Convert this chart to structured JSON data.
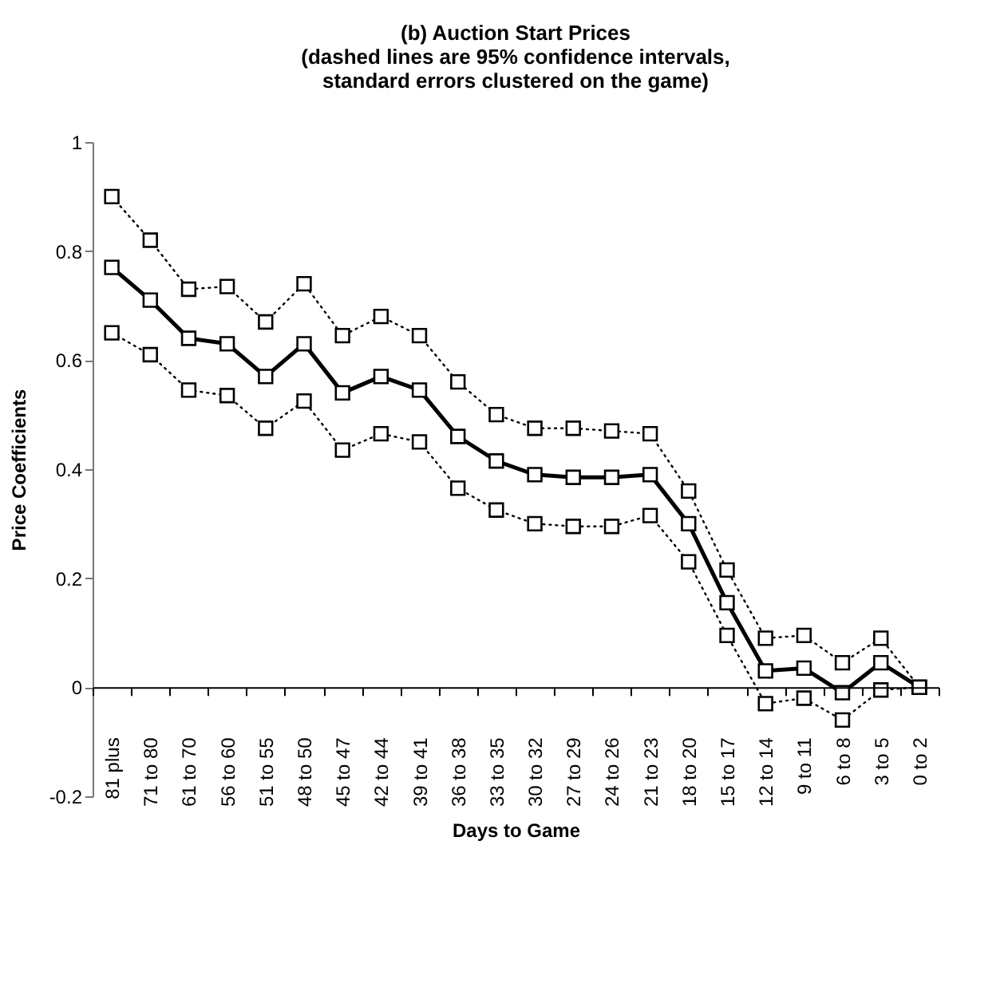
{
  "chart_data": {
    "type": "line",
    "title": [
      "(b) Auction Start Prices",
      "(dashed lines are 95% confidence intervals,",
      "standard errors clustered on the game)"
    ],
    "xlabel": "Days to Game",
    "ylabel": "Price Coefficients",
    "categories": [
      "81 plus",
      "71 to 80",
      "61 to 70",
      "56 to 60",
      "51 to 55",
      "48 to 50",
      "45 to 47",
      "42 to 44",
      "39 to 41",
      "36 to 38",
      "33 to 35",
      "30 to 32",
      "27 to 29",
      "24 to 26",
      "21 to 23",
      "18 to 20",
      "15 to 17",
      "12 to 14",
      "9 to 11",
      "6 to 8",
      "3 to 5",
      "0 to 2"
    ],
    "series": [
      {
        "color": "#000000",
        "line_style": "dotted",
        "values": [
          0.9,
          0.82,
          0.73,
          0.735,
          0.67,
          0.74,
          0.645,
          0.68,
          0.645,
          0.56,
          0.5,
          0.475,
          0.475,
          0.47,
          0.465,
          0.36,
          0.215,
          0.09,
          0.095,
          0.045,
          0.09,
          0
        ]
      },
      {
        "color": "#000000",
        "line_style": "solid",
        "values": [
          0.77,
          0.71,
          0.64,
          0.63,
          0.57,
          0.63,
          0.54,
          0.57,
          0.545,
          0.46,
          0.415,
          0.39,
          0.385,
          0.385,
          0.39,
          0.3,
          0.155,
          0.03,
          0.035,
          -0.01,
          0.045,
          0
        ]
      },
      {
        "color": "#000000",
        "line_style": "dotted",
        "values": [
          0.65,
          0.61,
          0.545,
          0.535,
          0.475,
          0.525,
          0.435,
          0.465,
          0.45,
          0.365,
          0.325,
          0.3,
          0.295,
          0.295,
          0.315,
          0.23,
          0.095,
          -0.03,
          -0.02,
          -0.06,
          -0.005,
          0
        ]
      }
    ],
    "marker": "square",
    "ylim": [
      -0.2,
      1
    ],
    "yticks": [
      -0.2,
      0,
      0.2,
      0.4,
      0.6,
      0.8,
      1
    ]
  }
}
